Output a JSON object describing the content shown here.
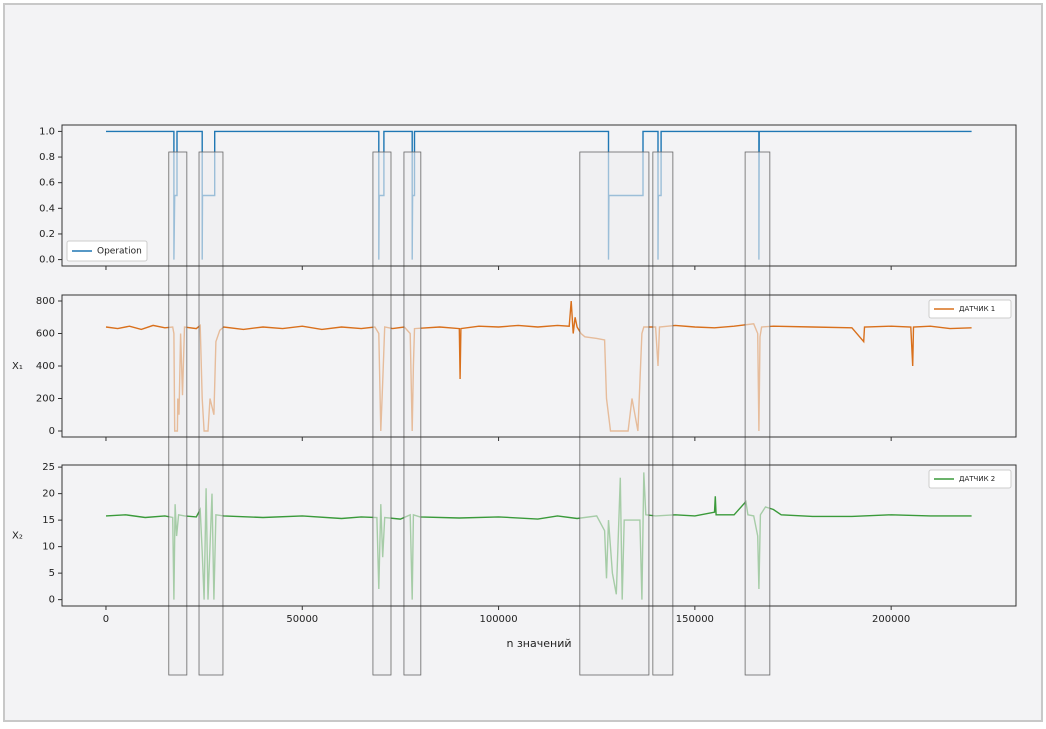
{
  "chart_data": [
    {
      "type": "line",
      "xlim": [
        -11200,
        231800
      ],
      "xticks": [
        0,
        50000,
        100000,
        150000,
        200000
      ],
      "ylim": [
        -0.05,
        1.05
      ],
      "yticks": [
        {
          "value": 0,
          "label": "0.0"
        },
        0.2,
        0.4,
        0.6,
        0.8,
        {
          "value": 1,
          "label": "1.0"
        }
      ],
      "legend": "lower left",
      "regions": [
        [
          16000,
          20600
        ],
        [
          23700,
          29800
        ],
        [
          68000,
          72600
        ],
        [
          75900,
          80200
        ],
        [
          120700,
          138300
        ],
        [
          139300,
          144400
        ],
        [
          162800,
          169100
        ]
      ],
      "x": [
        0,
        17300,
        17300,
        17500,
        18100,
        18100,
        24500,
        24500,
        24600,
        27700,
        27700,
        69500,
        69500,
        69600,
        70800,
        70800,
        78000,
        78000,
        78100,
        78600,
        78600,
        128000,
        128000,
        128100,
        136800,
        136800,
        140600,
        140600,
        140700,
        141400,
        141400,
        166300,
        166300,
        166400,
        220500
      ],
      "series": [
        {
          "name": "Operation",
          "color": "#1f77b4",
          "values": [
            1,
            1,
            0,
            0.5,
            0.5,
            1,
            1,
            0,
            0.5,
            0.5,
            1,
            1,
            0,
            0.5,
            0.5,
            1,
            1,
            0,
            0.5,
            0.5,
            1,
            1,
            0,
            0.5,
            0.5,
            1,
            1,
            0,
            0.5,
            0.5,
            1,
            1,
            0,
            1,
            1
          ]
        }
      ]
    },
    {
      "type": "line",
      "ylabel": "X₁",
      "xlim": [
        -11200,
        231800
      ],
      "xticks": [
        0,
        50000,
        100000,
        150000,
        200000
      ],
      "ylim": [
        -37,
        837
      ],
      "yticks": [
        0,
        200,
        400,
        600,
        800
      ],
      "legend": "upper right",
      "x": [
        0,
        3000,
        6000,
        9000,
        12000,
        15000,
        17000,
        17300,
        17500,
        18200,
        18300,
        18600,
        19000,
        19500,
        20000,
        23000,
        24000,
        24500,
        25000,
        26000,
        26500,
        27500,
        28000,
        29000,
        30000,
        35000,
        40000,
        45000,
        50000,
        55000,
        60000,
        65000,
        68500,
        69500,
        70000,
        70500,
        71000,
        73000,
        76000,
        77500,
        78000,
        78300,
        78600,
        85000,
        90000,
        90200,
        90400,
        95000,
        100000,
        105000,
        110000,
        115000,
        118000,
        118500,
        119000,
        119500,
        120000,
        121000,
        122000,
        125000,
        127000,
        127500,
        128500,
        132000,
        133000,
        134000,
        135500,
        136000,
        136500,
        137000,
        139000,
        140000,
        140600,
        141000,
        145000,
        150000,
        155000,
        160000,
        165000,
        166000,
        166300,
        166600,
        167000,
        170000,
        180000,
        190000,
        193000,
        193200,
        200000,
        205000,
        205500,
        205700,
        210000,
        215000,
        220500
      ],
      "series": [
        {
          "name": "ДАТЧИК 1",
          "color": "#d9701c",
          "values": [
            640,
            630,
            645,
            625,
            650,
            635,
            640,
            600,
            0,
            0,
            200,
            100,
            600,
            220,
            640,
            630,
            650,
            200,
            0,
            0,
            200,
            100,
            550,
            620,
            640,
            625,
            640,
            630,
            645,
            625,
            640,
            630,
            640,
            600,
            0,
            300,
            640,
            630,
            640,
            600,
            0,
            400,
            630,
            640,
            630,
            320,
            630,
            645,
            640,
            650,
            640,
            650,
            645,
            800,
            600,
            700,
            640,
            600,
            580,
            570,
            560,
            200,
            0,
            0,
            0,
            200,
            0,
            300,
            600,
            640,
            640,
            640,
            400,
            640,
            650,
            640,
            635,
            645,
            660,
            600,
            0,
            580,
            640,
            645,
            640,
            635,
            550,
            640,
            645,
            640,
            400,
            640,
            645,
            630,
            635
          ]
        }
      ]
    },
    {
      "type": "line",
      "ylabel": "X₂",
      "xlabel": "n значений",
      "xlim": [
        -11200,
        231800
      ],
      "xticks": [
        0,
        50000,
        100000,
        150000,
        200000
      ],
      "ylim": [
        -1.2,
        25.4
      ],
      "yticks": [
        0,
        5,
        10,
        15,
        20,
        25
      ],
      "legend": "upper right",
      "x": [
        0,
        5000,
        10000,
        15000,
        17000,
        17300,
        17600,
        18000,
        18500,
        20000,
        23000,
        24000,
        24500,
        25000,
        25500,
        26000,
        27000,
        27500,
        28000,
        30000,
        40000,
        50000,
        60000,
        65000,
        69000,
        69500,
        70000,
        70500,
        71000,
        75000,
        77500,
        78000,
        78300,
        80000,
        90000,
        100000,
        110000,
        115000,
        120000,
        125000,
        127000,
        127500,
        128000,
        129000,
        130000,
        131000,
        131500,
        132000,
        136000,
        136500,
        137000,
        137500,
        140000,
        145000,
        150000,
        155000,
        155200,
        155400,
        160000,
        163000,
        163500,
        165000,
        166000,
        166300,
        166700,
        168000,
        170000,
        172000,
        180000,
        190000,
        200000,
        210000,
        220500
      ],
      "series": [
        {
          "name": "ДАТЧИК 2",
          "color": "#3a9a3a",
          "values": [
            15.8,
            16,
            15.5,
            15.8,
            15.5,
            0,
            18,
            12,
            16,
            15.8,
            15.6,
            17,
            9,
            0,
            21,
            0,
            20,
            0,
            16,
            15.8,
            15.5,
            15.8,
            15.3,
            15.6,
            15.5,
            2,
            18,
            8,
            15.5,
            15.2,
            16,
            0,
            16,
            15.6,
            15.4,
            15.6,
            15.2,
            15.8,
            15.3,
            15.8,
            13,
            4,
            15,
            5,
            1,
            23,
            0,
            15,
            15,
            0,
            24,
            16,
            15.8,
            16,
            15.8,
            16.5,
            19.5,
            16,
            16,
            18.5,
            16,
            15.8,
            12,
            2,
            16,
            17.5,
            17,
            16,
            15.7,
            15.7,
            16,
            15.8,
            15.8
          ]
        }
      ]
    }
  ]
}
